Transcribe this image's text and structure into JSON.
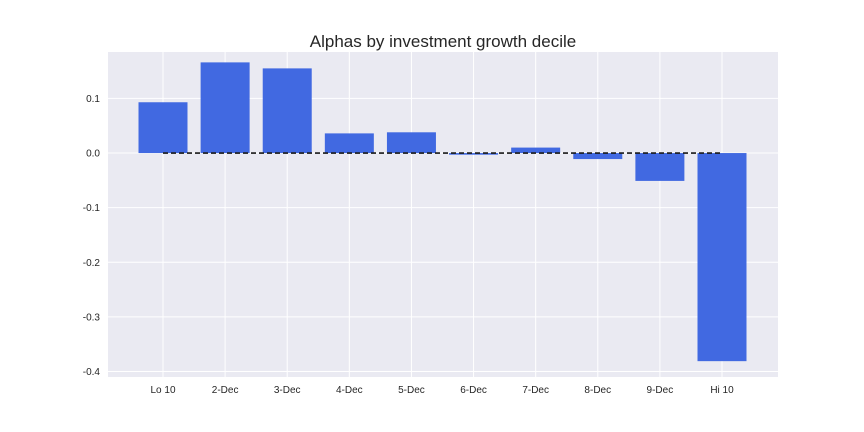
{
  "chart_data": {
    "type": "bar",
    "title": "Alphas by investment growth decile",
    "xlabel": "",
    "ylabel": "",
    "categories": [
      "Lo 10",
      "2-Dec",
      "3-Dec",
      "4-Dec",
      "5-Dec",
      "6-Dec",
      "7-Dec",
      "8-Dec",
      "9-Dec",
      "Hi 10"
    ],
    "values": [
      0.093,
      0.166,
      0.155,
      0.036,
      0.038,
      -0.003,
      0.01,
      -0.011,
      -0.051,
      -0.381
    ],
    "ylim": [
      -0.41,
      0.185
    ],
    "yticks": [
      0.1,
      0.0,
      -0.1,
      -0.2,
      -0.3,
      -0.4
    ],
    "ytick_labels": [
      "0.1",
      "0.0",
      "-0.1",
      "-0.2",
      "-0.3",
      "-0.4"
    ],
    "grid": true,
    "reference_line": {
      "y": 0.0,
      "style": "dashed"
    },
    "colors": {
      "bar": "#4169E1",
      "plot_background": "#EAEAF2",
      "grid": "#FFFFFF",
      "reference_line": "#1A1A1A",
      "text": "#262626"
    }
  }
}
